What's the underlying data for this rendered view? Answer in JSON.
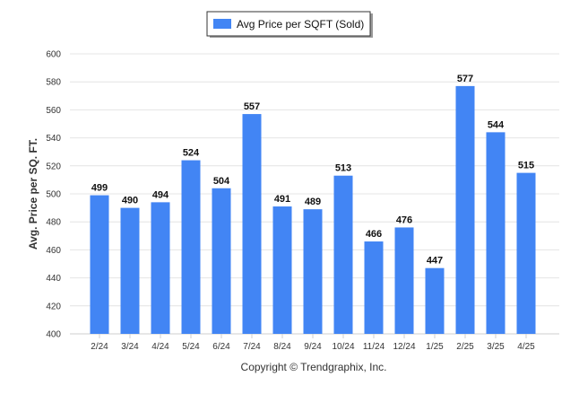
{
  "chart_data": {
    "type": "bar",
    "title": "",
    "legend": {
      "position": "top-center",
      "entries": [
        "Avg Price per SQFT (Sold)"
      ]
    },
    "categories": [
      "2/24",
      "3/24",
      "4/24",
      "5/24",
      "6/24",
      "7/24",
      "8/24",
      "9/24",
      "10/24",
      "11/24",
      "12/24",
      "1/25",
      "2/25",
      "3/25",
      "4/25"
    ],
    "series": [
      {
        "name": "Avg Price per SQFT (Sold)",
        "values": [
          499,
          490,
          494,
          524,
          504,
          557,
          491,
          489,
          513,
          466,
          476,
          447,
          577,
          544,
          515
        ],
        "color": "#4285F4"
      }
    ],
    "xlabel": "",
    "ylabel": "Avg. Price per SQ. FT.",
    "ylim": [
      400,
      600
    ],
    "yticks": [
      400,
      420,
      440,
      460,
      480,
      500,
      520,
      540,
      560,
      580,
      600
    ],
    "grid": true,
    "data_labels": true,
    "footer": "Copyright © Trendgraphix, Inc."
  }
}
